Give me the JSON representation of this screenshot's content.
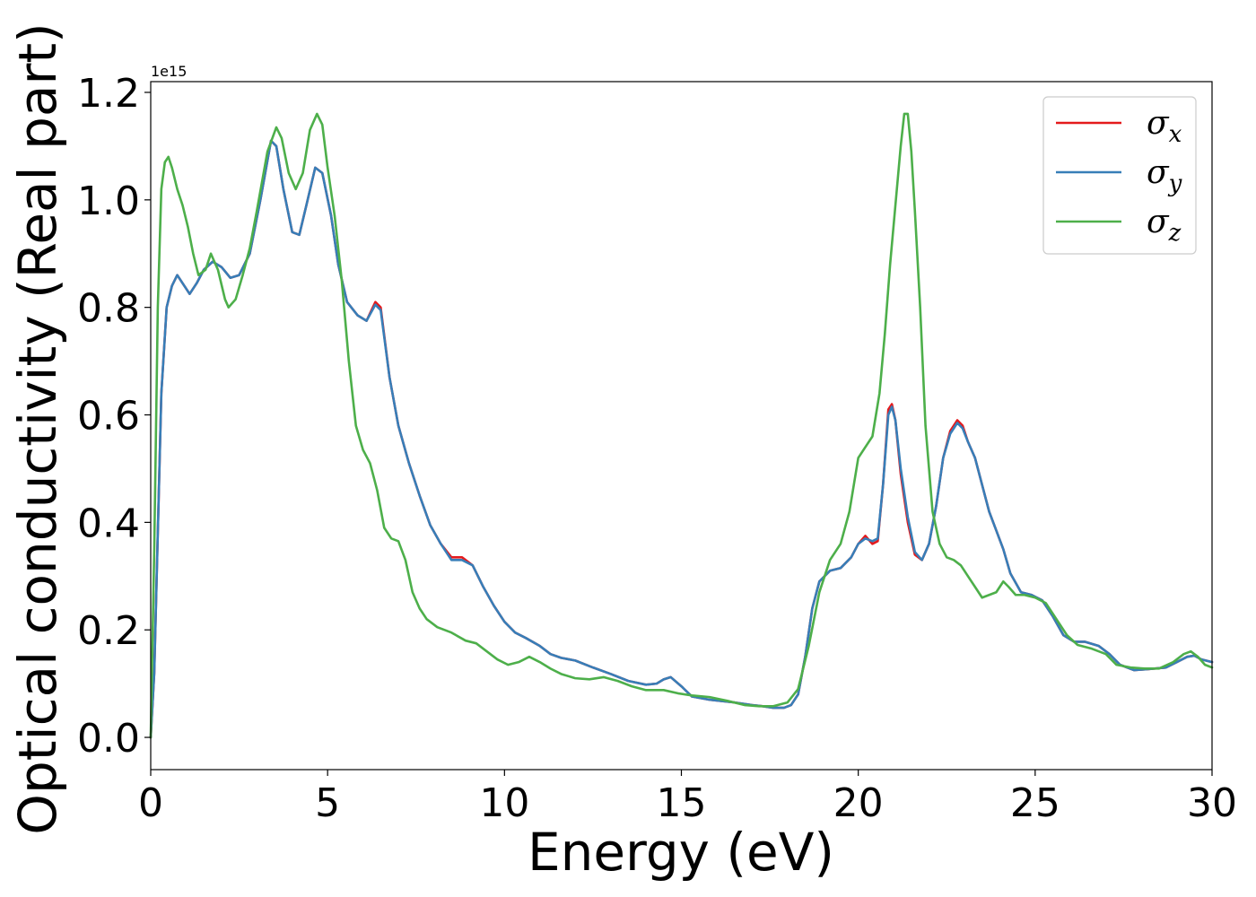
{
  "chart_data": {
    "type": "line",
    "title": "",
    "xlabel": "Energy (eV)",
    "ylabel": "Optical conductivity (Real part)",
    "y_offset_text": "1e15",
    "xlim": [
      0,
      30
    ],
    "ylim": [
      -0.06,
      1.22
    ],
    "x_ticks": [
      0,
      5,
      10,
      15,
      20,
      25,
      30
    ],
    "x_tick_labels": [
      "0",
      "5",
      "10",
      "15",
      "20",
      "25",
      "30"
    ],
    "y_ticks": [
      0.0,
      0.2,
      0.4,
      0.6,
      0.8,
      1.0,
      1.2
    ],
    "y_tick_labels": [
      "0.0",
      "0.2",
      "0.4",
      "0.6",
      "0.8",
      "1.0",
      "1.2"
    ],
    "grid": false,
    "legend_position": "upper right",
    "series": [
      {
        "name": "σ_x",
        "legend_base": "σ",
        "legend_sub": "x",
        "color": "#e41a1c",
        "x": [
          0,
          0.1,
          0.2,
          0.3,
          0.45,
          0.6,
          0.75,
          0.9,
          1.1,
          1.3,
          1.5,
          1.75,
          2.0,
          2.25,
          2.5,
          2.8,
          3.1,
          3.4,
          3.55,
          3.75,
          4.0,
          4.2,
          4.4,
          4.65,
          4.85,
          5.1,
          5.3,
          5.55,
          5.85,
          6.1,
          6.35,
          6.5,
          6.75,
          7.0,
          7.3,
          7.6,
          7.9,
          8.2,
          8.5,
          8.8,
          9.1,
          9.4,
          9.7,
          10.0,
          10.3,
          10.6,
          11.0,
          11.3,
          11.6,
          12.0,
          12.5,
          13.0,
          13.5,
          14.0,
          14.3,
          14.5,
          14.7,
          15.0,
          15.3,
          15.8,
          16.5,
          17.0,
          17.3,
          17.6,
          17.9,
          18.1,
          18.3,
          18.5,
          18.7,
          18.9,
          19.2,
          19.5,
          19.8,
          20.0,
          20.2,
          20.4,
          20.55,
          20.7,
          20.85,
          20.95,
          21.05,
          21.2,
          21.4,
          21.6,
          21.8,
          22.0,
          22.2,
          22.4,
          22.6,
          22.8,
          22.95,
          23.1,
          23.3,
          23.5,
          23.7,
          23.9,
          24.1,
          24.3,
          24.6,
          24.9,
          25.2,
          25.5,
          25.8,
          26.1,
          26.4,
          26.8,
          27.1,
          27.4,
          27.8,
          28.2,
          28.7,
          29.0,
          29.3,
          29.5,
          29.7,
          30.0
        ],
        "y": [
          0.0,
          0.12,
          0.38,
          0.64,
          0.8,
          0.84,
          0.86,
          0.845,
          0.825,
          0.845,
          0.87,
          0.885,
          0.875,
          0.855,
          0.86,
          0.9,
          1.0,
          1.11,
          1.1,
          1.02,
          0.94,
          0.935,
          0.99,
          1.06,
          1.05,
          0.97,
          0.88,
          0.81,
          0.785,
          0.775,
          0.81,
          0.8,
          0.67,
          0.58,
          0.51,
          0.45,
          0.395,
          0.36,
          0.335,
          0.335,
          0.32,
          0.28,
          0.245,
          0.215,
          0.195,
          0.185,
          0.17,
          0.155,
          0.148,
          0.143,
          0.13,
          0.118,
          0.105,
          0.098,
          0.1,
          0.108,
          0.112,
          0.095,
          0.076,
          0.07,
          0.065,
          0.06,
          0.058,
          0.055,
          0.055,
          0.06,
          0.08,
          0.15,
          0.24,
          0.29,
          0.31,
          0.315,
          0.335,
          0.36,
          0.375,
          0.36,
          0.365,
          0.47,
          0.61,
          0.62,
          0.59,
          0.49,
          0.4,
          0.34,
          0.33,
          0.36,
          0.43,
          0.52,
          0.57,
          0.59,
          0.58,
          0.55,
          0.52,
          0.47,
          0.42,
          0.385,
          0.35,
          0.305,
          0.27,
          0.265,
          0.255,
          0.225,
          0.19,
          0.178,
          0.178,
          0.17,
          0.155,
          0.135,
          0.125,
          0.127,
          0.13,
          0.14,
          0.15,
          0.152,
          0.145,
          0.14
        ]
      },
      {
        "name": "σ_y",
        "legend_base": "σ",
        "legend_sub": "y",
        "color": "#377eb8",
        "x": [
          0,
          0.1,
          0.2,
          0.3,
          0.45,
          0.6,
          0.75,
          0.9,
          1.1,
          1.3,
          1.5,
          1.75,
          2.0,
          2.25,
          2.5,
          2.8,
          3.1,
          3.4,
          3.55,
          3.75,
          4.0,
          4.2,
          4.4,
          4.65,
          4.85,
          5.1,
          5.3,
          5.55,
          5.85,
          6.1,
          6.35,
          6.5,
          6.75,
          7.0,
          7.3,
          7.6,
          7.9,
          8.2,
          8.5,
          8.8,
          9.1,
          9.4,
          9.7,
          10.0,
          10.3,
          10.6,
          11.0,
          11.3,
          11.6,
          12.0,
          12.5,
          13.0,
          13.5,
          14.0,
          14.3,
          14.5,
          14.7,
          15.0,
          15.3,
          15.8,
          16.5,
          17.0,
          17.3,
          17.6,
          17.9,
          18.1,
          18.3,
          18.5,
          18.7,
          18.9,
          19.2,
          19.5,
          19.8,
          20.0,
          20.2,
          20.4,
          20.55,
          20.7,
          20.85,
          20.95,
          21.05,
          21.2,
          21.4,
          21.6,
          21.8,
          22.0,
          22.2,
          22.4,
          22.6,
          22.8,
          22.95,
          23.1,
          23.3,
          23.5,
          23.7,
          23.9,
          24.1,
          24.3,
          24.6,
          24.9,
          25.2,
          25.5,
          25.8,
          26.1,
          26.4,
          26.8,
          27.1,
          27.4,
          27.8,
          28.2,
          28.7,
          29.0,
          29.3,
          29.5,
          29.7,
          30.0
        ],
        "y": [
          0.0,
          0.12,
          0.38,
          0.64,
          0.8,
          0.84,
          0.86,
          0.845,
          0.825,
          0.845,
          0.87,
          0.885,
          0.875,
          0.855,
          0.86,
          0.9,
          1.0,
          1.11,
          1.1,
          1.02,
          0.94,
          0.935,
          0.99,
          1.06,
          1.05,
          0.97,
          0.88,
          0.81,
          0.785,
          0.775,
          0.805,
          0.795,
          0.67,
          0.58,
          0.51,
          0.45,
          0.395,
          0.36,
          0.33,
          0.33,
          0.32,
          0.28,
          0.245,
          0.215,
          0.195,
          0.185,
          0.17,
          0.155,
          0.148,
          0.143,
          0.13,
          0.118,
          0.105,
          0.098,
          0.1,
          0.108,
          0.112,
          0.095,
          0.076,
          0.07,
          0.065,
          0.06,
          0.058,
          0.055,
          0.055,
          0.06,
          0.08,
          0.15,
          0.24,
          0.29,
          0.31,
          0.315,
          0.335,
          0.36,
          0.37,
          0.365,
          0.37,
          0.47,
          0.6,
          0.615,
          0.59,
          0.5,
          0.41,
          0.345,
          0.33,
          0.36,
          0.43,
          0.52,
          0.565,
          0.585,
          0.575,
          0.55,
          0.52,
          0.47,
          0.42,
          0.385,
          0.35,
          0.305,
          0.27,
          0.265,
          0.255,
          0.225,
          0.19,
          0.178,
          0.178,
          0.17,
          0.155,
          0.135,
          0.125,
          0.127,
          0.13,
          0.14,
          0.15,
          0.152,
          0.145,
          0.14
        ]
      },
      {
        "name": "σ_z",
        "legend_base": "σ",
        "legend_sub": "z",
        "color": "#4daf4a",
        "x": [
          0,
          0.1,
          0.2,
          0.3,
          0.4,
          0.5,
          0.6,
          0.75,
          0.9,
          1.05,
          1.2,
          1.35,
          1.55,
          1.7,
          1.9,
          2.1,
          2.2,
          2.4,
          2.6,
          2.8,
          3.0,
          3.3,
          3.55,
          3.7,
          3.9,
          4.1,
          4.3,
          4.5,
          4.7,
          4.85,
          5.0,
          5.2,
          5.4,
          5.6,
          5.8,
          6.0,
          6.2,
          6.4,
          6.6,
          6.8,
          7.0,
          7.2,
          7.4,
          7.6,
          7.8,
          8.1,
          8.5,
          8.9,
          9.2,
          9.5,
          9.8,
          10.1,
          10.4,
          10.7,
          11.0,
          11.3,
          11.6,
          12.0,
          12.4,
          12.8,
          13.2,
          13.6,
          14.0,
          14.5,
          14.9,
          15.3,
          15.8,
          16.3,
          16.8,
          17.2,
          17.6,
          18.0,
          18.3,
          18.6,
          18.9,
          19.2,
          19.5,
          19.75,
          20.0,
          20.2,
          20.4,
          20.6,
          20.75,
          20.9,
          21.05,
          21.2,
          21.3,
          21.4,
          21.5,
          21.6,
          21.75,
          21.9,
          22.1,
          22.3,
          22.5,
          22.7,
          22.9,
          23.1,
          23.3,
          23.5,
          23.7,
          23.9,
          24.1,
          24.25,
          24.45,
          24.7,
          25.0,
          25.3,
          25.6,
          25.9,
          26.2,
          26.6,
          27.0,
          27.3,
          27.7,
          28.1,
          28.5,
          28.9,
          29.2,
          29.4,
          29.6,
          29.8,
          30.0
        ],
        "y": [
          0.0,
          0.35,
          0.8,
          1.02,
          1.07,
          1.08,
          1.06,
          1.02,
          0.99,
          0.95,
          0.9,
          0.86,
          0.87,
          0.9,
          0.87,
          0.815,
          0.8,
          0.815,
          0.86,
          0.91,
          0.98,
          1.09,
          1.135,
          1.115,
          1.05,
          1.02,
          1.05,
          1.13,
          1.16,
          1.14,
          1.06,
          0.97,
          0.85,
          0.7,
          0.58,
          0.535,
          0.51,
          0.46,
          0.39,
          0.37,
          0.365,
          0.33,
          0.27,
          0.24,
          0.22,
          0.205,
          0.195,
          0.18,
          0.175,
          0.16,
          0.145,
          0.135,
          0.14,
          0.15,
          0.14,
          0.128,
          0.118,
          0.11,
          0.108,
          0.112,
          0.105,
          0.095,
          0.088,
          0.088,
          0.082,
          0.078,
          0.075,
          0.068,
          0.06,
          0.058,
          0.058,
          0.065,
          0.09,
          0.17,
          0.27,
          0.33,
          0.36,
          0.42,
          0.52,
          0.54,
          0.56,
          0.64,
          0.75,
          0.88,
          0.99,
          1.1,
          1.16,
          1.16,
          1.09,
          0.98,
          0.8,
          0.58,
          0.42,
          0.36,
          0.335,
          0.33,
          0.32,
          0.3,
          0.28,
          0.26,
          0.265,
          0.27,
          0.29,
          0.28,
          0.265,
          0.265,
          0.26,
          0.25,
          0.22,
          0.19,
          0.172,
          0.165,
          0.155,
          0.135,
          0.13,
          0.128,
          0.128,
          0.14,
          0.155,
          0.16,
          0.15,
          0.135,
          0.13
        ]
      }
    ]
  }
}
